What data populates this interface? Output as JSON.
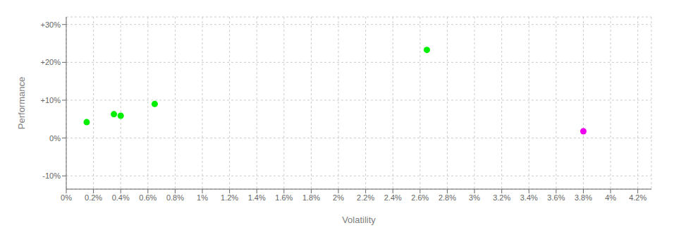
{
  "chart_data": {
    "type": "scatter",
    "x_label": "Volatility",
    "y_label": "Performance",
    "xlim": [
      0.0,
      0.043
    ],
    "ylim": [
      -0.135,
      0.32
    ],
    "xticks": [
      {
        "value": 0.0,
        "label": "0%"
      },
      {
        "value": 0.002,
        "label": "0.2%"
      },
      {
        "value": 0.004,
        "label": "0.4%"
      },
      {
        "value": 0.006,
        "label": "0.6%"
      },
      {
        "value": 0.008,
        "label": "0.8%"
      },
      {
        "value": 0.01,
        "label": "1%"
      },
      {
        "value": 0.012,
        "label": "1.2%"
      },
      {
        "value": 0.014,
        "label": "1.4%"
      },
      {
        "value": 0.016,
        "label": "1.6%"
      },
      {
        "value": 0.018,
        "label": "1.8%"
      },
      {
        "value": 0.02,
        "label": "2%"
      },
      {
        "value": 0.022,
        "label": "2.2%"
      },
      {
        "value": 0.024,
        "label": "2.4%"
      },
      {
        "value": 0.026,
        "label": "2.6%"
      },
      {
        "value": 0.028,
        "label": "2.8%"
      },
      {
        "value": 0.03,
        "label": "3%"
      },
      {
        "value": 0.032,
        "label": "3.2%"
      },
      {
        "value": 0.034,
        "label": "3.4%"
      },
      {
        "value": 0.036,
        "label": "3.6%"
      },
      {
        "value": 0.038,
        "label": "3.8%"
      },
      {
        "value": 0.04,
        "label": "4%"
      },
      {
        "value": 0.042,
        "label": "4.2%"
      }
    ],
    "yticks": [
      {
        "value": -0.1,
        "label": "-10%"
      },
      {
        "value": 0.0,
        "label": "0%"
      },
      {
        "value": 0.1,
        "label": "+10%"
      },
      {
        "value": 0.2,
        "label": "+20%"
      },
      {
        "value": 0.3,
        "label": "+30%"
      }
    ],
    "grid": true,
    "series": [
      {
        "color": "#00ee00",
        "x": [
          0.0015,
          0.0035,
          0.004,
          0.0065,
          0.0265
        ],
        "values": [
          0.042,
          0.063,
          0.059,
          0.09,
          0.233
        ]
      },
      {
        "color": "#ee00ee",
        "x": [
          0.038
        ],
        "values": [
          0.018
        ]
      }
    ]
  }
}
